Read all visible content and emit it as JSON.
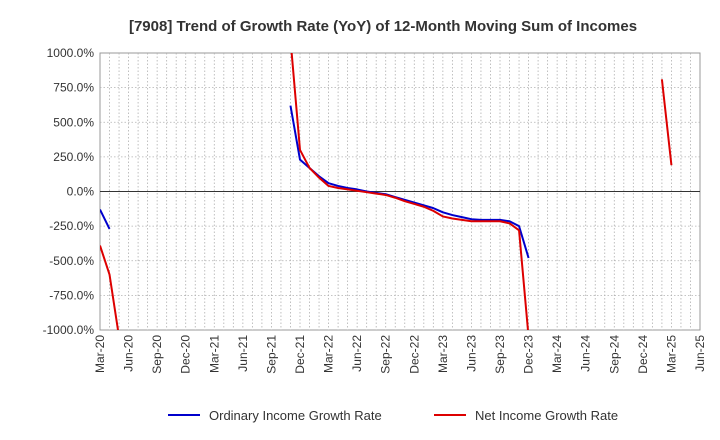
{
  "chart_data": {
    "type": "line",
    "title": "[7908]  Trend of Growth Rate (YoY) of 12-Month Moving Sum of Incomes",
    "xlabel": "",
    "ylabel": "",
    "ylim": [
      -1000,
      1000
    ],
    "y_ticks": [
      "1000.0%",
      "750.0%",
      "500.0%",
      "250.0%",
      "0.0%",
      "-250.0%",
      "-500.0%",
      "-750.0%",
      "-1000.0%"
    ],
    "y_tick_values": [
      1000,
      750,
      500,
      250,
      0,
      -250,
      -500,
      -750,
      -1000
    ],
    "x_ticks": [
      "Mar-20",
      "Jun-20",
      "Sep-20",
      "Dec-20",
      "Mar-21",
      "Jun-21",
      "Sep-21",
      "Dec-21",
      "Mar-22",
      "Jun-22",
      "Sep-22",
      "Dec-22",
      "Mar-23",
      "Jun-23",
      "Sep-23",
      "Dec-23",
      "Mar-24",
      "Jun-24",
      "Sep-24",
      "Dec-24",
      "Mar-25",
      "Jun-25"
    ],
    "grid": true,
    "legend_position": "bottom",
    "series": [
      {
        "name": "Ordinary Income Growth Rate",
        "color": "#0000cc",
        "points": [
          [
            "Mar-20",
            -130
          ],
          [
            "Apr-20",
            -270
          ],
          null,
          [
            "Nov-21",
            620
          ],
          [
            "Dec-21",
            230
          ],
          [
            "Jan-22",
            170
          ],
          [
            "Feb-22",
            110
          ],
          [
            "Mar-22",
            60
          ],
          [
            "Apr-22",
            40
          ],
          [
            "May-22",
            25
          ],
          [
            "Jun-22",
            15
          ],
          [
            "Jul-22",
            0
          ],
          [
            "Aug-22",
            -10
          ],
          [
            "Sep-22",
            -20
          ],
          [
            "Oct-22",
            -40
          ],
          [
            "Nov-22",
            -60
          ],
          [
            "Dec-22",
            -80
          ],
          [
            "Jan-23",
            -100
          ],
          [
            "Feb-23",
            -120
          ],
          [
            "Mar-23",
            -150
          ],
          [
            "Apr-23",
            -170
          ],
          [
            "May-23",
            -185
          ],
          [
            "Jun-23",
            -200
          ],
          [
            "Jul-23",
            -205
          ],
          [
            "Aug-23",
            -205
          ],
          [
            "Sep-23",
            -205
          ],
          [
            "Oct-23",
            -215
          ],
          [
            "Nov-23",
            -250
          ],
          [
            "Dec-23",
            -480
          ]
        ]
      },
      {
        "name": "Net Income Growth Rate",
        "color": "#dd0000",
        "points": [
          [
            "Mar-20",
            -390
          ],
          [
            "Apr-20",
            -600
          ],
          [
            "May-20",
            -1050
          ],
          null,
          [
            "Nov-21",
            1100
          ],
          [
            "Dec-21",
            300
          ],
          [
            "Jan-22",
            170
          ],
          [
            "Feb-22",
            100
          ],
          [
            "Mar-22",
            40
          ],
          [
            "Apr-22",
            25
          ],
          [
            "May-22",
            15
          ],
          [
            "Jun-22",
            5
          ],
          [
            "Jul-22",
            -5
          ],
          [
            "Aug-22",
            -15
          ],
          [
            "Sep-22",
            -25
          ],
          [
            "Oct-22",
            -45
          ],
          [
            "Nov-22",
            -70
          ],
          [
            "Dec-22",
            -90
          ],
          [
            "Jan-23",
            -110
          ],
          [
            "Feb-23",
            -140
          ],
          [
            "Mar-23",
            -180
          ],
          [
            "Apr-23",
            -195
          ],
          [
            "May-23",
            -205
          ],
          [
            "Jun-23",
            -215
          ],
          [
            "Jul-23",
            -215
          ],
          [
            "Aug-23",
            -215
          ],
          [
            "Sep-23",
            -215
          ],
          [
            "Oct-23",
            -230
          ],
          [
            "Nov-23",
            -280
          ],
          [
            "Dec-23",
            -1050
          ],
          null,
          [
            "Feb-25",
            810
          ],
          [
            "Mar-25",
            190
          ]
        ]
      }
    ]
  }
}
